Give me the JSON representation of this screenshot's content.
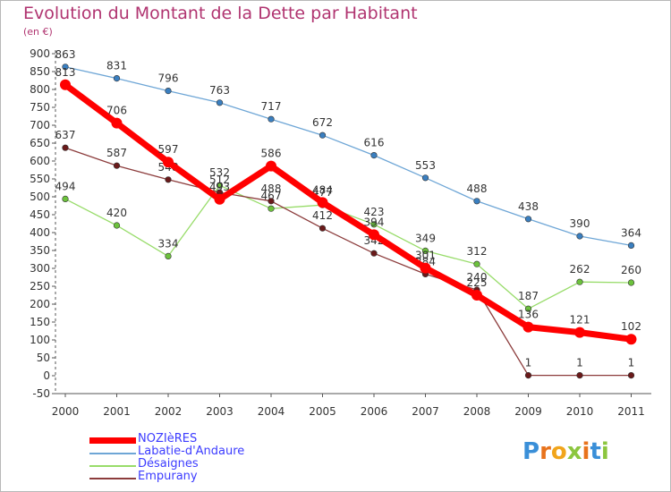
{
  "header": {
    "title": "Evolution du Montant de la Dette par Habitant",
    "unit": "(en €)"
  },
  "logo": {
    "letters": [
      "P",
      "r",
      "o",
      "x",
      "i",
      "t",
      "i"
    ],
    "colors": [
      "#3a8fd8",
      "#e8731c",
      "#f1a51c",
      "#8cc63f",
      "#e8731c",
      "#3a8fd8",
      "#8cc63f"
    ]
  },
  "chart_data": {
    "type": "line",
    "title": "Evolution du Montant de la Dette par Habitant",
    "subtitle": "(en €)",
    "x": [
      "2000",
      "2001",
      "2002",
      "2003",
      "2004",
      "2005",
      "2006",
      "2007",
      "2008",
      "2009",
      "2010",
      "2011"
    ],
    "ylim": [
      -50,
      900
    ],
    "yticks": [
      -50,
      0,
      50,
      100,
      150,
      200,
      250,
      300,
      350,
      400,
      450,
      500,
      550,
      600,
      650,
      700,
      750,
      800,
      850,
      900
    ],
    "grid": false,
    "legend_position": "bottom-left",
    "series": [
      {
        "name": "Labatie-d'Andaure",
        "color": "#6ea6d6",
        "marker": "#3a7fc0",
        "values": [
          863,
          831,
          796,
          763,
          717,
          672,
          616,
          553,
          488,
          438,
          390,
          364
        ]
      },
      {
        "name": "Désaignes",
        "color": "#98dc6a",
        "marker": "#6cc23c",
        "values": [
          494,
          420,
          334,
          532,
          467,
          477,
          423,
          349,
          312,
          187,
          262,
          260
        ]
      },
      {
        "name": "Empurany",
        "color": "#8c3c3c",
        "marker": "#6a1a1a",
        "values": [
          637,
          587,
          548,
          512,
          488,
          412,
          342,
          284,
          240,
          1,
          1,
          1
        ]
      },
      {
        "name": "NOZIèRES",
        "color": "#ff0000",
        "marker": "#ff0000",
        "values": [
          813,
          706,
          597,
          493,
          586,
          484,
          394,
          301,
          225,
          136,
          121,
          102
        ]
      }
    ],
    "legend_order": [
      "NOZIèRES",
      "Labatie-d'Andaure",
      "Désaignes",
      "Empurany"
    ]
  }
}
